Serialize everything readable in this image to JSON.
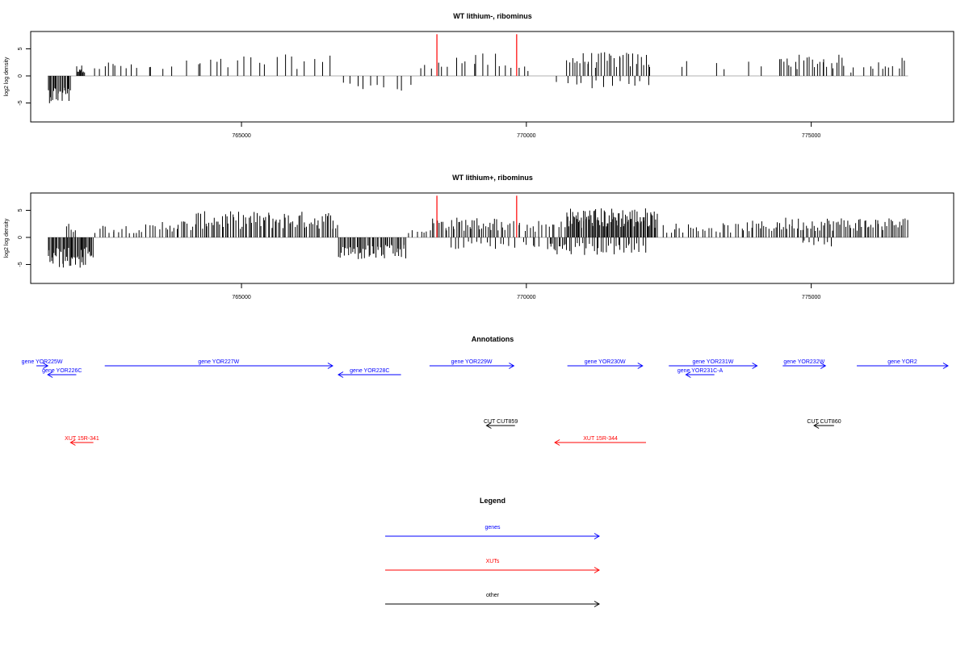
{
  "chart_data": [
    {
      "type": "bar",
      "title": "WT lithium-, ribominus",
      "xlabel": "",
      "ylabel": "log2 log density",
      "xlim": [
        761300,
        777500
      ],
      "ylim": [
        -8.5,
        8.2
      ],
      "xticks": [
        765000,
        770000,
        775000
      ],
      "yticks": [
        5,
        0,
        -5
      ],
      "ytick_labels": [
        "5",
        "0",
        "-5"
      ],
      "bar_color": "#000000",
      "marker_color": "#ff0000",
      "markers_x": [
        768430,
        769830
      ],
      "marker_top": 7.7,
      "segments": [
        {
          "start": 761600,
          "end": 762000,
          "val": -4.6,
          "sign": -1,
          "density": 22
        },
        {
          "start": 762100,
          "end": 762250,
          "val": 1.8,
          "sign": 1,
          "density": 10
        },
        {
          "start": 762400,
          "end": 763000,
          "val": 2.5,
          "sign": 1,
          "density": 8
        },
        {
          "start": 763000,
          "end": 763800,
          "val": 2.0,
          "sign": 1,
          "density": 6
        },
        {
          "start": 764000,
          "end": 765000,
          "val": 3.0,
          "sign": 1,
          "density": 8
        },
        {
          "start": 765000,
          "end": 766600,
          "val": 3.6,
          "sign": 1,
          "density": 12
        },
        {
          "start": 766700,
          "end": 768000,
          "val": -2.8,
          "sign": -1,
          "density": 10
        },
        {
          "start": 768100,
          "end": 768300,
          "val": 2.0,
          "sign": 1,
          "density": 2
        },
        {
          "start": 768300,
          "end": 769500,
          "val": 3.8,
          "sign": 1,
          "density": 12
        },
        {
          "start": 769500,
          "end": 770100,
          "val": 2.0,
          "sign": 1,
          "density": 6
        },
        {
          "start": 770450,
          "end": 770550,
          "val": -3.0,
          "sign": -1,
          "density": 1
        },
        {
          "start": 770700,
          "end": 772200,
          "val": 4.0,
          "sign": 1,
          "density": 35
        },
        {
          "start": 770700,
          "end": 772200,
          "val": -2.2,
          "sign": -1,
          "density": 12
        },
        {
          "start": 772500,
          "end": 774300,
          "val": 2.5,
          "sign": 1,
          "density": 6
        },
        {
          "start": 774400,
          "end": 775600,
          "val": 3.6,
          "sign": 1,
          "density": 25
        },
        {
          "start": 775600,
          "end": 776000,
          "val": 1.6,
          "sign": 1,
          "density": 3
        },
        {
          "start": 776000,
          "end": 776700,
          "val": 3.2,
          "sign": 1,
          "density": 10
        }
      ]
    },
    {
      "type": "bar",
      "title": "WT lithium+, ribominus",
      "xlabel": "",
      "ylabel": "log2 log density",
      "xlim": [
        761300,
        777500
      ],
      "ylim": [
        -8.5,
        8.2
      ],
      "xticks": [
        765000,
        770000,
        775000
      ],
      "yticks": [
        5,
        0,
        -5
      ],
      "ytick_labels": [
        "5",
        "0",
        "-5"
      ],
      "bar_color": "#000000",
      "marker_color": "#ff0000",
      "markers_x": [
        768430,
        769830
      ],
      "marker_top": 7.7,
      "segments": [
        {
          "start": 761600,
          "end": 762400,
          "val": -5.2,
          "sign": -1,
          "density": 45
        },
        {
          "start": 761900,
          "end": 762100,
          "val": 2.4,
          "sign": 1,
          "density": 5
        },
        {
          "start": 762400,
          "end": 763600,
          "val": 2.2,
          "sign": 1,
          "density": 20
        },
        {
          "start": 763600,
          "end": 764200,
          "val": 3.0,
          "sign": 1,
          "density": 15
        },
        {
          "start": 764200,
          "end": 766700,
          "val": 4.4,
          "sign": 1,
          "density": 80
        },
        {
          "start": 766700,
          "end": 767900,
          "val": -3.8,
          "sign": -1,
          "density": 50
        },
        {
          "start": 767900,
          "end": 768300,
          "val": 1.6,
          "sign": 1,
          "density": 6
        },
        {
          "start": 768300,
          "end": 769600,
          "val": 3.4,
          "sign": 1,
          "density": 40
        },
        {
          "start": 768600,
          "end": 769800,
          "val": -2.0,
          "sign": -1,
          "density": 15
        },
        {
          "start": 769600,
          "end": 770700,
          "val": 2.8,
          "sign": 1,
          "density": 20
        },
        {
          "start": 769900,
          "end": 770700,
          "val": -2.2,
          "sign": -1,
          "density": 10
        },
        {
          "start": 770700,
          "end": 772300,
          "val": 5.0,
          "sign": 1,
          "density": 90
        },
        {
          "start": 770400,
          "end": 772100,
          "val": -3.0,
          "sign": -1,
          "density": 40
        },
        {
          "start": 772400,
          "end": 773800,
          "val": 2.4,
          "sign": 1,
          "density": 25
        },
        {
          "start": 773800,
          "end": 774400,
          "val": 2.8,
          "sign": 1,
          "density": 15
        },
        {
          "start": 774400,
          "end": 776700,
          "val": 3.4,
          "sign": 1,
          "density": 70
        },
        {
          "start": 774800,
          "end": 775400,
          "val": -1.6,
          "sign": -1,
          "density": 8
        }
      ]
    }
  ],
  "annotations": {
    "title": "Annotations",
    "genes": [
      {
        "name": "gene YOR225W",
        "start": 761400,
        "end": 761600,
        "dir": "right",
        "row": 0
      },
      {
        "name": "gene YOR226C",
        "start": 761600,
        "end": 762100,
        "dir": "left",
        "row": 1
      },
      {
        "name": "gene YOR227W",
        "start": 762600,
        "end": 766600,
        "dir": "right",
        "row": 0
      },
      {
        "name": "gene YOR228C",
        "start": 766700,
        "end": 767800,
        "dir": "left",
        "row": 1
      },
      {
        "name": "gene YOR229W",
        "start": 768300,
        "end": 769780,
        "dir": "right",
        "row": 0
      },
      {
        "name": "gene YOR230W",
        "start": 770720,
        "end": 772040,
        "dir": "right",
        "row": 0
      },
      {
        "name": "gene YOR231W",
        "start": 772500,
        "end": 774050,
        "dir": "right",
        "row": 0
      },
      {
        "name": "gene YOR231C-A",
        "start": 772800,
        "end": 773300,
        "dir": "left",
        "row": 1
      },
      {
        "name": "gene YOR232W",
        "start": 774500,
        "end": 775250,
        "dir": "right",
        "row": 0
      },
      {
        "name": "gene YOR2",
        "start": 775800,
        "end": 777400,
        "dir": "right",
        "row": 0
      }
    ],
    "cuts": [
      {
        "name": "CUT CUT859",
        "start": 769300,
        "end": 769800,
        "dir": "left"
      },
      {
        "name": "CUT CUT860",
        "start": 775050,
        "end": 775400,
        "dir": "left"
      }
    ],
    "xuts": [
      {
        "name": "XUT 15R-341",
        "start": 762000,
        "end": 762400,
        "dir": "left"
      },
      {
        "name": "XUT 15R-344",
        "start": 770500,
        "end": 772100,
        "dir": "left"
      }
    ]
  },
  "legend": {
    "title": "Legend",
    "items": [
      {
        "label": "genes",
        "color": "#0000ff"
      },
      {
        "label": "XUTs",
        "color": "#ff0000"
      },
      {
        "label": "other",
        "color": "#000000"
      }
    ]
  },
  "colors": {
    "genes": "#0000ff",
    "xuts": "#ff0000",
    "other": "#000000"
  }
}
